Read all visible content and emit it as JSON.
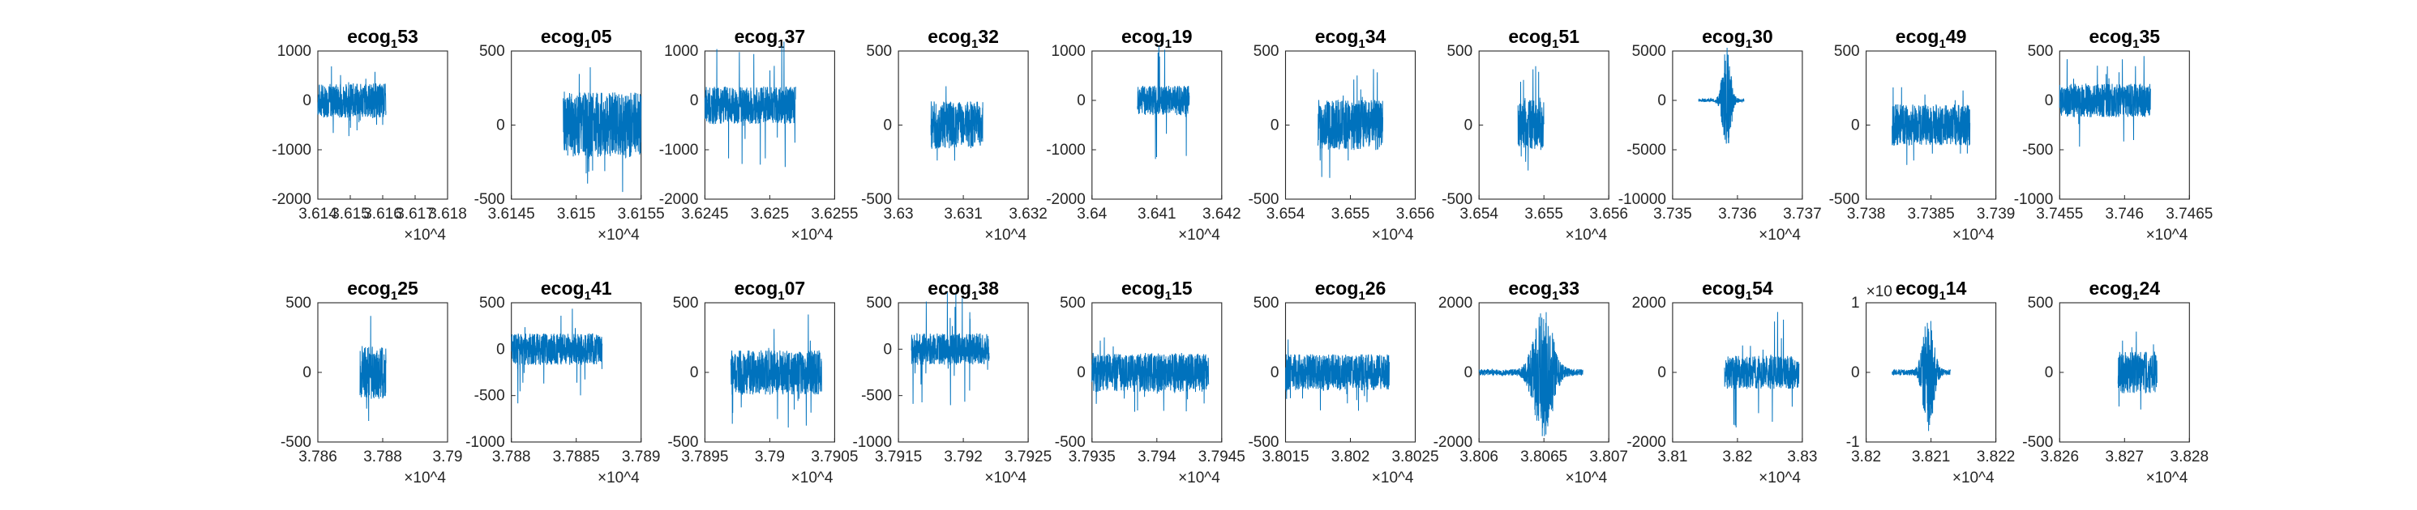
{
  "chart_data": [
    {
      "type": "line",
      "title": "ecog_1 53",
      "title_main": "ecog",
      "title_sub": "1",
      "title_rest": "53",
      "xlim": [
        3.614,
        3.618
      ],
      "x_ticks": [
        "3.614",
        "3.615",
        "3.616",
        "3.617",
        "3.618"
      ],
      "x_exponent": "×10^4",
      "ylim": [
        -2000,
        1000
      ],
      "y_ticks": [
        "-2000",
        "-1000",
        "0",
        "1000"
      ],
      "signal": {
        "x_start": 3.614,
        "x_end": 3.6161,
        "center": 0,
        "amplitude": 350,
        "peak": 750,
        "shape": "noise"
      }
    },
    {
      "type": "line",
      "title": "ecog_1 05",
      "title_main": "ecog",
      "title_sub": "1",
      "title_rest": "05",
      "xlim": [
        3.6145,
        3.6155
      ],
      "x_ticks": [
        "3.6145",
        "3.615",
        "3.6155"
      ],
      "x_exponent": "×10^4",
      "ylim": [
        -500,
        500
      ],
      "y_ticks": [
        "-500",
        "0",
        "500"
      ],
      "signal": {
        "x_start": 3.6149,
        "x_end": 3.6155,
        "center": 0,
        "amplitude": 220,
        "peak": 480,
        "shape": "noise"
      }
    },
    {
      "type": "line",
      "title": "ecog_1 37",
      "title_main": "ecog",
      "title_sub": "1",
      "title_rest": "37",
      "xlim": [
        3.6245,
        3.6255
      ],
      "x_ticks": [
        "3.6245",
        "3.625",
        "3.6255"
      ],
      "x_exponent": "×10^4",
      "ylim": [
        -2000,
        1000
      ],
      "y_ticks": [
        "-2000",
        "-1000",
        "0",
        "1000"
      ],
      "signal": {
        "x_start": 3.6245,
        "x_end": 3.6252,
        "center": -100,
        "amplitude": 380,
        "peak": 1300,
        "shape": "noise"
      }
    },
    {
      "type": "line",
      "title": "ecog_1 32",
      "title_main": "ecog",
      "title_sub": "1",
      "title_rest": "32",
      "xlim": [
        3.63,
        3.632
      ],
      "x_ticks": [
        "3.63",
        "3.631",
        "3.632"
      ],
      "x_exponent": "×10^4",
      "ylim": [
        -500,
        500
      ],
      "y_ticks": [
        "-500",
        "0",
        "500"
      ],
      "signal": {
        "x_start": 3.6305,
        "x_end": 3.6313,
        "center": 0,
        "amplitude": 160,
        "peak": 270,
        "shape": "noise"
      }
    },
    {
      "type": "line",
      "title": "ecog_1 19",
      "title_main": "ecog",
      "title_sub": "1",
      "title_rest": "19",
      "xlim": [
        3.64,
        3.642
      ],
      "x_ticks": [
        "3.64",
        "3.641",
        "3.642"
      ],
      "x_exponent": "×10^4",
      "ylim": [
        -2000,
        1000
      ],
      "y_ticks": [
        "-2000",
        "-1000",
        "0",
        "1000"
      ],
      "signal": {
        "x_start": 3.6407,
        "x_end": 3.6415,
        "center": 0,
        "amplitude": 300,
        "peak": 1200,
        "shape": "noise"
      }
    },
    {
      "type": "line",
      "title": "ecog_1 34",
      "title_main": "ecog",
      "title_sub": "1",
      "title_rest": "34",
      "xlim": [
        3.654,
        3.656
      ],
      "x_ticks": [
        "3.654",
        "3.655",
        "3.656"
      ],
      "x_exponent": "×10^4",
      "ylim": [
        -500,
        500
      ],
      "y_ticks": [
        "-500",
        "0",
        "500"
      ],
      "signal": {
        "x_start": 3.6545,
        "x_end": 3.6555,
        "center": 0,
        "amplitude": 170,
        "peak": 430,
        "shape": "noise"
      }
    },
    {
      "type": "line",
      "title": "ecog_1 51",
      "title_main": "ecog",
      "title_sub": "1",
      "title_rest": "51",
      "xlim": [
        3.654,
        3.656
      ],
      "x_ticks": [
        "3.654",
        "3.655",
        "3.656"
      ],
      "x_exponent": "×10^4",
      "ylim": [
        -500,
        500
      ],
      "y_ticks": [
        "-500",
        "0",
        "500"
      ],
      "signal": {
        "x_start": 3.6546,
        "x_end": 3.655,
        "center": 0,
        "amplitude": 170,
        "peak": 400,
        "shape": "noise"
      }
    },
    {
      "type": "line",
      "title": "ecog_1 30",
      "title_main": "ecog",
      "title_sub": "1",
      "title_rest": "30",
      "xlim": [
        3.735,
        3.737
      ],
      "x_ticks": [
        "3.735",
        "3.736",
        "3.737"
      ],
      "x_exponent": "×10^4",
      "ylim": [
        -10000,
        5000
      ],
      "y_ticks": [
        "-10000",
        "-5000",
        "0",
        "5000"
      ],
      "signal": {
        "x_start": 3.7354,
        "x_end": 3.7361,
        "center": 0,
        "amplitude": 150,
        "peak": 5500,
        "shape": "burst"
      }
    },
    {
      "type": "line",
      "title": "ecog_1 49",
      "title_main": "ecog",
      "title_sub": "1",
      "title_rest": "49",
      "xlim": [
        3.738,
        3.739
      ],
      "x_ticks": [
        "3.738",
        "3.7385",
        "3.739"
      ],
      "x_exponent": "×10^4",
      "ylim": [
        -500,
        500
      ],
      "y_ticks": [
        "-500",
        "0",
        "500"
      ],
      "signal": {
        "x_start": 3.7382,
        "x_end": 3.7388,
        "center": 0,
        "amplitude": 140,
        "peak": 280,
        "shape": "noise"
      }
    },
    {
      "type": "line",
      "title": "ecog_1 35",
      "title_main": "ecog",
      "title_sub": "1",
      "title_rest": "35",
      "xlim": [
        3.7455,
        3.7465
      ],
      "x_ticks": [
        "3.7455",
        "3.746",
        "3.7465"
      ],
      "x_exponent": "×10^4",
      "ylim": [
        -1000,
        500
      ],
      "y_ticks": [
        "-1000",
        "-500",
        "0",
        "500"
      ],
      "signal": {
        "x_start": 3.7455,
        "x_end": 3.7462,
        "center": 0,
        "amplitude": 170,
        "peak": 480,
        "shape": "noise"
      }
    },
    {
      "type": "line",
      "title": "ecog_1 25",
      "title_main": "ecog",
      "title_sub": "1",
      "title_rest": "25",
      "xlim": [
        3.786,
        3.79
      ],
      "x_ticks": [
        "3.786",
        "3.788",
        "3.79"
      ],
      "x_exponent": "×10^4",
      "ylim": [
        -500,
        500
      ],
      "y_ticks": [
        "-500",
        "0",
        "500"
      ],
      "signal": {
        "x_start": 3.7873,
        "x_end": 3.7881,
        "center": 0,
        "amplitude": 190,
        "peak": 480,
        "shape": "noise"
      }
    },
    {
      "type": "line",
      "title": "ecog_1 41",
      "title_main": "ecog",
      "title_sub": "1",
      "title_rest": "41",
      "xlim": [
        3.788,
        3.789
      ],
      "x_ticks": [
        "3.788",
        "3.7885",
        "3.789"
      ],
      "x_exponent": "×10^4",
      "ylim": [
        -1000,
        500
      ],
      "y_ticks": [
        "-1000",
        "-500",
        "0",
        "500"
      ],
      "signal": {
        "x_start": 3.788,
        "x_end": 3.7887,
        "center": 0,
        "amplitude": 170,
        "peak": 620,
        "shape": "noise"
      }
    },
    {
      "type": "line",
      "title": "ecog_1 07",
      "title_main": "ecog",
      "title_sub": "1",
      "title_rest": "07",
      "xlim": [
        3.7895,
        3.7905
      ],
      "x_ticks": [
        "3.7895",
        "3.79",
        "3.7905"
      ],
      "x_exponent": "×10^4",
      "ylim": [
        -500,
        500
      ],
      "y_ticks": [
        "-500",
        "0",
        "500"
      ],
      "signal": {
        "x_start": 3.7897,
        "x_end": 3.7904,
        "center": 0,
        "amplitude": 160,
        "peak": 440,
        "shape": "noise"
      }
    },
    {
      "type": "line",
      "title": "ecog_1 38",
      "title_main": "ecog",
      "title_sub": "1",
      "title_rest": "38",
      "xlim": [
        3.7915,
        3.7925
      ],
      "x_ticks": [
        "3.7915",
        "3.792",
        "3.7925"
      ],
      "x_exponent": "×10^4",
      "ylim": [
        -1000,
        500
      ],
      "y_ticks": [
        "-1000",
        "-500",
        "0",
        "500"
      ],
      "signal": {
        "x_start": 3.7916,
        "x_end": 3.7922,
        "center": 0,
        "amplitude": 170,
        "peak": 630,
        "shape": "noise"
      }
    },
    {
      "type": "line",
      "title": "ecog_1 15",
      "title_main": "ecog",
      "title_sub": "1",
      "title_rest": "15",
      "xlim": [
        3.7935,
        3.7945
      ],
      "x_ticks": [
        "3.7935",
        "3.794",
        "3.7945"
      ],
      "x_exponent": "×10^4",
      "ylim": [
        -500,
        500
      ],
      "y_ticks": [
        "-500",
        "0",
        "500"
      ],
      "signal": {
        "x_start": 3.7935,
        "x_end": 3.7944,
        "center": 0,
        "amplitude": 140,
        "peak": 300,
        "shape": "noise"
      }
    },
    {
      "type": "line",
      "title": "ecog_1 26",
      "title_main": "ecog",
      "title_sub": "1",
      "title_rest": "26",
      "xlim": [
        3.8015,
        3.8025
      ],
      "x_ticks": [
        "3.8015",
        "3.802",
        "3.8025"
      ],
      "x_exponent": "×10^4",
      "ylim": [
        -500,
        500
      ],
      "y_ticks": [
        "-500",
        "0",
        "500"
      ],
      "signal": {
        "x_start": 3.8015,
        "x_end": 3.8023,
        "center": 0,
        "amplitude": 130,
        "peak": 290,
        "shape": "noise"
      }
    },
    {
      "type": "line",
      "title": "ecog_1 33",
      "title_main": "ecog",
      "title_sub": "1",
      "title_rest": "33",
      "xlim": [
        3.806,
        3.807
      ],
      "x_ticks": [
        "3.806",
        "3.8065",
        "3.807"
      ],
      "x_exponent": "×10^4",
      "ylim": [
        -2000,
        2000
      ],
      "y_ticks": [
        "-2000",
        "0",
        "2000"
      ],
      "signal": {
        "x_start": 3.806,
        "x_end": 3.8068,
        "center": 0,
        "amplitude": 90,
        "peak": 1900,
        "shape": "burst"
      }
    },
    {
      "type": "line",
      "title": "ecog_1 54",
      "title_main": "ecog",
      "title_sub": "1",
      "title_rest": "54",
      "xlim": [
        3.81,
        3.83
      ],
      "x_ticks": [
        "3.81",
        "3.82",
        "3.83"
      ],
      "x_exponent": "×10^4",
      "ylim": [
        -2000,
        2000
      ],
      "y_ticks": [
        "-2000",
        "0",
        "2000"
      ],
      "signal": {
        "x_start": 3.818,
        "x_end": 3.8295,
        "center": 0,
        "amplitude": 480,
        "peak": 1900,
        "shape": "noise"
      }
    },
    {
      "type": "line",
      "title": "ecog_1 14",
      "title_main": "ecog",
      "title_sub": "1",
      "title_rest": "14",
      "xlim": [
        3.82,
        3.822
      ],
      "x_ticks": [
        "3.82",
        "3.821",
        "3.822"
      ],
      "x_exponent": "×10^4",
      "ylim": [
        -1,
        1
      ],
      "y_ticks": [
        "-1",
        "0",
        "1"
      ],
      "y_exponent": "×10",
      "signal": {
        "x_start": 3.8204,
        "x_end": 3.8213,
        "center": 0,
        "amplitude": 0.04,
        "peak": 0.85,
        "shape": "burst"
      }
    },
    {
      "type": "line",
      "title": "ecog_1 24",
      "title_main": "ecog",
      "title_sub": "1",
      "title_rest": "24",
      "xlim": [
        3.826,
        3.828
      ],
      "x_ticks": [
        "3.826",
        "3.827",
        "3.828"
      ],
      "x_exponent": "×10^4",
      "ylim": [
        -500,
        500
      ],
      "y_ticks": [
        "-500",
        "0",
        "500"
      ],
      "signal": {
        "x_start": 3.8269,
        "x_end": 3.8275,
        "center": 0,
        "amplitude": 150,
        "peak": 300,
        "shape": "noise"
      }
    }
  ]
}
